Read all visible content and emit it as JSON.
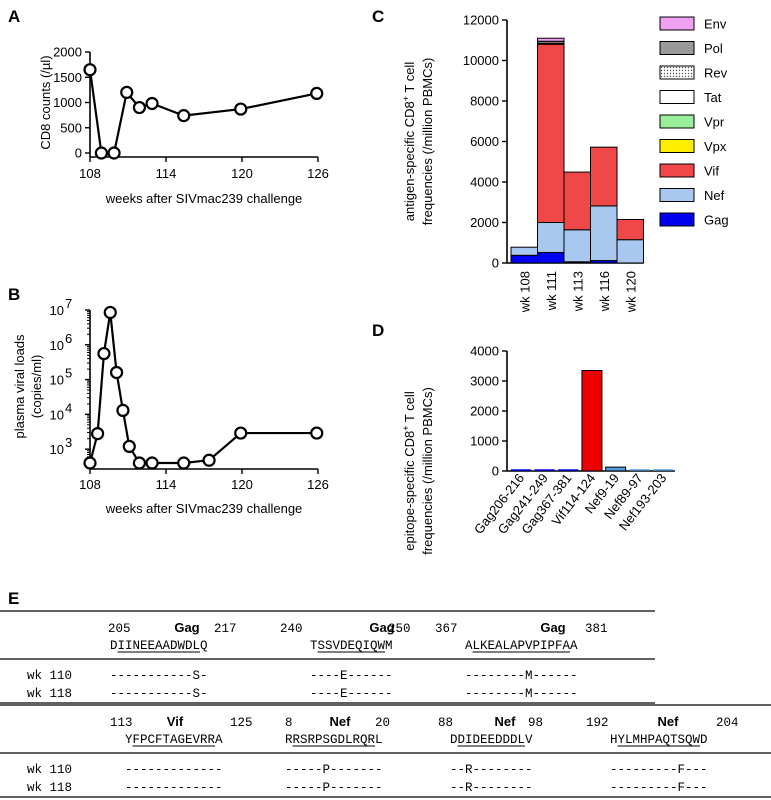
{
  "panels": {
    "A": "A",
    "B": "B",
    "C": "C",
    "D": "D",
    "E": "E"
  },
  "chart_data": [
    {
      "id": "A",
      "type": "line",
      "xlabel": "weeks after SIVmac239 challenge",
      "ylabel": "CD8 counts (/µl)",
      "xlim": [
        108,
        126
      ],
      "ylim": [
        0,
        2000
      ],
      "xticks": [
        "108",
        "114",
        "120",
        "126"
      ],
      "yticks": [
        "0",
        "500",
        "1000",
        "1500",
        "2000"
      ],
      "x": [
        108,
        108.9,
        109.9,
        110.9,
        111.9,
        112.9,
        115.4,
        119.9,
        125.9
      ],
      "y": [
        1650,
        0,
        0,
        1200,
        900,
        980,
        740,
        870,
        1180
      ]
    },
    {
      "id": "B",
      "type": "line",
      "xlabel": "weeks after SIVmac239 challenge",
      "ylabel_line1": "plasma viral loads",
      "ylabel_line2": "(copies/ml)",
      "scale": "log",
      "xlim": [
        108,
        126
      ],
      "ylim": [
        400,
        10000000
      ],
      "xticks": [
        "108",
        "114",
        "120",
        "126"
      ],
      "yticks": [
        {
          "base": "10",
          "exp": "7"
        },
        {
          "base": "10",
          "exp": "6"
        },
        {
          "base": "10",
          "exp": "5"
        },
        {
          "base": "10",
          "exp": "4"
        },
        {
          "base": "10",
          "exp": "3"
        }
      ],
      "x": [
        108,
        108.6,
        109.1,
        109.6,
        110.1,
        110.6,
        111.1,
        111.9,
        112.9,
        115.4,
        117.4,
        119.9,
        125.9
      ],
      "y": [
        400,
        2800,
        560000,
        8500000,
        160000,
        13000,
        1200,
        400,
        400,
        400,
        480,
        2900,
        2900
      ]
    },
    {
      "id": "C",
      "type": "bar",
      "stacked": true,
      "ylabel_line1": "antigen-specific CD8",
      "ylabel_sup": "+",
      "ylabel_line1b": " T cell",
      "ylabel_line2": "frequencies (/million PBMCs)",
      "ylim": [
        0,
        12000
      ],
      "yticks": [
        "0",
        "2000",
        "4000",
        "6000",
        "8000",
        "10000",
        "12000"
      ],
      "categories": [
        "wk 108",
        "wk 111",
        "wk 113",
        "wk 116",
        "wk 120"
      ],
      "legend_position": "right",
      "series": [
        {
          "name": "Gag",
          "color": "#0000ee",
          "values": [
            380,
            520,
            60,
            120,
            0
          ]
        },
        {
          "name": "Nef",
          "color": "#a8c8f0",
          "values": [
            400,
            1480,
            1580,
            2700,
            1150
          ]
        },
        {
          "name": "Vif",
          "color": "#f04848",
          "values": [
            0,
            8800,
            2850,
            2900,
            1000
          ]
        },
        {
          "name": "Vpx",
          "color": "#ffee00",
          "values": [
            0,
            0,
            0,
            0,
            0
          ]
        },
        {
          "name": "Vpr",
          "color": "#99ee99",
          "values": [
            0,
            0,
            0,
            0,
            0
          ]
        },
        {
          "name": "Tat",
          "color": "#ffffff",
          "values": [
            0,
            0,
            0,
            0,
            0
          ]
        },
        {
          "name": "Rev",
          "color": "#e8e8e8",
          "values": [
            0,
            50,
            0,
            0,
            0
          ]
        },
        {
          "name": "Pol",
          "color": "#999999",
          "values": [
            0,
            100,
            0,
            0,
            0
          ]
        },
        {
          "name": "Env",
          "color": "#f0a0f0",
          "values": [
            0,
            150,
            0,
            0,
            0
          ]
        }
      ]
    },
    {
      "id": "D",
      "type": "bar",
      "ylabel_line1": "epitope-specific CD8",
      "ylabel_sup": "+",
      "ylabel_line1b": " T cell",
      "ylabel_line2": "frequencies (/million PBMCs)",
      "ylim": [
        0,
        4000
      ],
      "yticks": [
        "0",
        "1000",
        "2000",
        "3000",
        "4000"
      ],
      "categories": [
        "Gag206-216",
        "Gag241-249",
        "Gag367-381",
        "Vif114-124",
        "Nef9-19",
        "Nef89-97",
        "Nef193-203"
      ],
      "values": [
        0,
        0,
        0,
        3350,
        130,
        0,
        0
      ],
      "colors": [
        "#0000ee",
        "#0000ee",
        "#0000ee",
        "#ee0000",
        "#5599dd",
        "#5599dd",
        "#5599dd"
      ]
    }
  ],
  "table_e": {
    "block1": {
      "headers": [
        {
          "start": "205",
          "name": "Gag",
          "end": "217",
          "seq": "DIINEEAADWDLQ"
        },
        {
          "start": "240",
          "name": "Gag",
          "end": "250",
          "seq": "TSSVDEQIQWM"
        },
        {
          "start": "367",
          "name": "Gag",
          "end": "381",
          "seq": "ALKEALAPVPIPFAA"
        }
      ],
      "rows": [
        {
          "label": "wk 110",
          "cells": [
            "-----------S-",
            "----E------",
            "--------M------"
          ]
        },
        {
          "label": "wk 118",
          "cells": [
            "-----------S-",
            "----E------",
            "--------M------"
          ]
        }
      ]
    },
    "block2": {
      "headers": [
        {
          "start": "113",
          "name": "Vif",
          "end": "125",
          "seq": "YFPCFTAGEVRRA"
        },
        {
          "start": "8",
          "name": "Nef",
          "end": "20",
          "seq": "RRSRPSGDLRQRL"
        },
        {
          "start": "88",
          "name": "Nef",
          "end": "98",
          "seq": "DDIDEEDDDLV"
        },
        {
          "start": "192",
          "name": "Nef",
          "end": "204",
          "seq": "HYLMHPAQTSQWD"
        }
      ],
      "rows": [
        {
          "label": "wk 110",
          "cells": [
            "-------------",
            "-----P-------",
            "--R--------",
            "---------F---"
          ]
        },
        {
          "label": "wk 118",
          "cells": [
            "-------------",
            "-----P-------",
            "--R--------",
            "---------F---"
          ]
        }
      ]
    }
  }
}
